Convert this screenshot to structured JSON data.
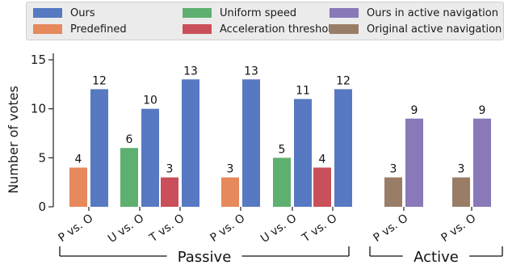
{
  "chart_data": {
    "type": "bar",
    "ylabel": "Number of votes",
    "xlabel": "",
    "ylim": [
      0,
      16
    ],
    "yticks": [
      0,
      5,
      10,
      15
    ],
    "legend_placement": "top",
    "grid": false,
    "series": [
      {
        "name": "Ours",
        "color": "#5779c2"
      },
      {
        "name": "Predefined",
        "color": "#e6895c"
      },
      {
        "name": "Uniform speed",
        "color": "#5eb070"
      },
      {
        "name": "Acceleration threshold",
        "color": "#c9505a"
      },
      {
        "name": "Ours in active navigation",
        "color": "#8a79b8"
      },
      {
        "name": "Original active navigation",
        "color": "#9a7d67"
      }
    ],
    "groups": [
      {
        "name": "Passive",
        "comparisons": [
          {
            "label": "P vs. O",
            "baseline": "Predefined",
            "baseline_value": 4,
            "ours": "Ours",
            "ours_value": 12
          },
          {
            "label": "U vs. O",
            "baseline": "Uniform speed",
            "baseline_value": 6,
            "ours": "Ours",
            "ours_value": 10
          },
          {
            "label": "T vs. O",
            "baseline": "Acceleration threshold",
            "baseline_value": 3,
            "ours": "Ours",
            "ours_value": 13
          },
          {
            "label": "P vs. O",
            "baseline": "Predefined",
            "baseline_value": 3,
            "ours": "Ours",
            "ours_value": 13
          },
          {
            "label": "U vs. O",
            "baseline": "Uniform speed",
            "baseline_value": 5,
            "ours": "Ours",
            "ours_value": 11
          },
          {
            "label": "T vs. O",
            "baseline": "Acceleration threshold",
            "baseline_value": 4,
            "ours": "Ours",
            "ours_value": 12
          }
        ]
      },
      {
        "name": "Active",
        "comparisons": [
          {
            "label": "P vs. O",
            "baseline": "Original active navigation",
            "baseline_value": 3,
            "ours": "Ours in active navigation",
            "ours_value": 9
          },
          {
            "label": "P vs. O",
            "baseline": "Original active navigation",
            "baseline_value": 3,
            "ours": "Ours in active navigation",
            "ours_value": 9
          }
        ]
      }
    ]
  }
}
